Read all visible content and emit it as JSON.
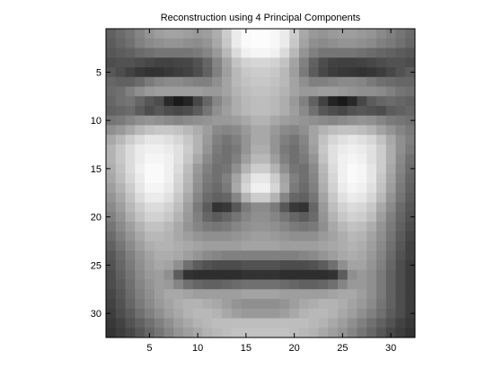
{
  "chart_data": {
    "type": "heatmap",
    "title": "Reconstruction using 4 Principal Components",
    "xlabel": "",
    "ylabel": "",
    "colormap": "gray",
    "axis_equal": true,
    "grid": false,
    "colorbar": false,
    "xlim": [
      0.5,
      32.5
    ],
    "ylim": [
      0.5,
      32.5
    ],
    "y_direction": "reverse",
    "xticks": [
      5,
      10,
      15,
      20,
      25,
      30
    ],
    "yticks": [
      5,
      10,
      15,
      20,
      25,
      30
    ],
    "grid_rows": 32,
    "grid_cols": 32,
    "value_range": [
      0,
      1
    ],
    "intensities": [
      [
        0.38,
        0.42,
        0.46,
        0.52,
        0.58,
        0.62,
        0.64,
        0.64,
        0.62,
        0.6,
        0.62,
        0.68,
        0.8,
        0.92,
        0.98,
        0.99,
        0.99,
        0.97,
        0.92,
        0.8,
        0.66,
        0.6,
        0.58,
        0.6,
        0.62,
        0.62,
        0.6,
        0.58,
        0.54,
        0.5,
        0.46,
        0.42
      ],
      [
        0.36,
        0.4,
        0.44,
        0.5,
        0.54,
        0.56,
        0.58,
        0.58,
        0.56,
        0.55,
        0.58,
        0.66,
        0.78,
        0.92,
        0.98,
        0.99,
        0.99,
        0.97,
        0.92,
        0.78,
        0.64,
        0.56,
        0.54,
        0.56,
        0.58,
        0.58,
        0.56,
        0.54,
        0.5,
        0.48,
        0.44,
        0.4
      ],
      [
        0.34,
        0.36,
        0.38,
        0.42,
        0.44,
        0.46,
        0.46,
        0.46,
        0.46,
        0.48,
        0.52,
        0.6,
        0.72,
        0.86,
        0.94,
        0.96,
        0.96,
        0.94,
        0.86,
        0.72,
        0.58,
        0.5,
        0.46,
        0.46,
        0.46,
        0.46,
        0.44,
        0.42,
        0.4,
        0.38,
        0.36,
        0.34
      ],
      [
        0.3,
        0.32,
        0.32,
        0.3,
        0.28,
        0.26,
        0.26,
        0.27,
        0.28,
        0.32,
        0.4,
        0.52,
        0.64,
        0.76,
        0.82,
        0.84,
        0.84,
        0.82,
        0.76,
        0.64,
        0.5,
        0.38,
        0.3,
        0.26,
        0.25,
        0.25,
        0.26,
        0.28,
        0.3,
        0.32,
        0.32,
        0.3
      ],
      [
        0.34,
        0.3,
        0.26,
        0.22,
        0.2,
        0.2,
        0.22,
        0.24,
        0.26,
        0.3,
        0.38,
        0.5,
        0.62,
        0.72,
        0.78,
        0.8,
        0.8,
        0.78,
        0.72,
        0.62,
        0.48,
        0.36,
        0.28,
        0.24,
        0.22,
        0.21,
        0.2,
        0.21,
        0.24,
        0.28,
        0.32,
        0.36
      ],
      [
        0.4,
        0.38,
        0.38,
        0.42,
        0.48,
        0.52,
        0.54,
        0.54,
        0.52,
        0.5,
        0.5,
        0.56,
        0.64,
        0.72,
        0.76,
        0.78,
        0.78,
        0.76,
        0.72,
        0.64,
        0.56,
        0.5,
        0.5,
        0.52,
        0.54,
        0.54,
        0.52,
        0.48,
        0.44,
        0.42,
        0.4,
        0.4
      ],
      [
        0.42,
        0.44,
        0.5,
        0.56,
        0.6,
        0.62,
        0.62,
        0.62,
        0.62,
        0.62,
        0.6,
        0.6,
        0.64,
        0.7,
        0.74,
        0.76,
        0.76,
        0.74,
        0.7,
        0.64,
        0.6,
        0.6,
        0.62,
        0.62,
        0.6,
        0.58,
        0.56,
        0.56,
        0.54,
        0.5,
        0.46,
        0.44
      ],
      [
        0.4,
        0.44,
        0.46,
        0.4,
        0.34,
        0.3,
        0.16,
        0.1,
        0.14,
        0.28,
        0.4,
        0.52,
        0.6,
        0.68,
        0.72,
        0.74,
        0.74,
        0.72,
        0.68,
        0.6,
        0.5,
        0.38,
        0.26,
        0.14,
        0.1,
        0.16,
        0.28,
        0.36,
        0.4,
        0.42,
        0.4,
        0.38
      ],
      [
        0.38,
        0.4,
        0.42,
        0.36,
        0.3,
        0.34,
        0.3,
        0.28,
        0.3,
        0.36,
        0.46,
        0.56,
        0.62,
        0.68,
        0.72,
        0.74,
        0.74,
        0.72,
        0.68,
        0.62,
        0.54,
        0.44,
        0.34,
        0.3,
        0.28,
        0.32,
        0.34,
        0.32,
        0.3,
        0.36,
        0.38,
        0.4
      ],
      [
        0.46,
        0.48,
        0.52,
        0.56,
        0.58,
        0.56,
        0.54,
        0.52,
        0.54,
        0.56,
        0.58,
        0.6,
        0.6,
        0.62,
        0.66,
        0.7,
        0.7,
        0.66,
        0.62,
        0.6,
        0.58,
        0.56,
        0.54,
        0.52,
        0.54,
        0.56,
        0.58,
        0.56,
        0.52,
        0.48,
        0.46,
        0.44
      ],
      [
        0.56,
        0.6,
        0.66,
        0.72,
        0.76,
        0.78,
        0.78,
        0.76,
        0.72,
        0.68,
        0.62,
        0.54,
        0.52,
        0.54,
        0.6,
        0.66,
        0.66,
        0.6,
        0.54,
        0.52,
        0.56,
        0.64,
        0.7,
        0.74,
        0.76,
        0.76,
        0.74,
        0.7,
        0.64,
        0.58,
        0.52,
        0.48
      ],
      [
        0.66,
        0.72,
        0.8,
        0.86,
        0.9,
        0.9,
        0.88,
        0.84,
        0.78,
        0.7,
        0.6,
        0.5,
        0.46,
        0.5,
        0.58,
        0.66,
        0.66,
        0.58,
        0.5,
        0.46,
        0.52,
        0.64,
        0.76,
        0.84,
        0.88,
        0.9,
        0.88,
        0.84,
        0.76,
        0.66,
        0.56,
        0.5
      ],
      [
        0.7,
        0.78,
        0.86,
        0.92,
        0.94,
        0.94,
        0.92,
        0.88,
        0.8,
        0.7,
        0.58,
        0.48,
        0.44,
        0.48,
        0.58,
        0.68,
        0.68,
        0.58,
        0.48,
        0.44,
        0.5,
        0.62,
        0.78,
        0.88,
        0.92,
        0.94,
        0.92,
        0.88,
        0.8,
        0.68,
        0.56,
        0.48
      ],
      [
        0.7,
        0.78,
        0.86,
        0.92,
        0.96,
        0.96,
        0.94,
        0.88,
        0.78,
        0.66,
        0.54,
        0.46,
        0.44,
        0.5,
        0.62,
        0.72,
        0.72,
        0.62,
        0.5,
        0.44,
        0.48,
        0.58,
        0.76,
        0.88,
        0.94,
        0.96,
        0.94,
        0.88,
        0.8,
        0.68,
        0.54,
        0.44
      ],
      [
        0.68,
        0.76,
        0.86,
        0.94,
        0.98,
        0.98,
        0.94,
        0.86,
        0.74,
        0.6,
        0.5,
        0.44,
        0.46,
        0.56,
        0.7,
        0.8,
        0.8,
        0.7,
        0.56,
        0.46,
        0.44,
        0.54,
        0.72,
        0.86,
        0.94,
        0.98,
        0.96,
        0.9,
        0.8,
        0.66,
        0.52,
        0.42
      ],
      [
        0.66,
        0.74,
        0.84,
        0.92,
        0.98,
        0.98,
        0.94,
        0.84,
        0.72,
        0.58,
        0.48,
        0.44,
        0.5,
        0.64,
        0.8,
        0.9,
        0.9,
        0.8,
        0.64,
        0.5,
        0.44,
        0.52,
        0.7,
        0.84,
        0.94,
        0.98,
        0.96,
        0.9,
        0.78,
        0.64,
        0.5,
        0.4
      ],
      [
        0.62,
        0.7,
        0.8,
        0.9,
        0.96,
        0.96,
        0.92,
        0.82,
        0.7,
        0.56,
        0.46,
        0.42,
        0.48,
        0.66,
        0.84,
        0.94,
        0.94,
        0.84,
        0.66,
        0.48,
        0.42,
        0.5,
        0.68,
        0.82,
        0.92,
        0.96,
        0.94,
        0.88,
        0.76,
        0.62,
        0.48,
        0.38
      ],
      [
        0.58,
        0.66,
        0.76,
        0.86,
        0.92,
        0.92,
        0.88,
        0.78,
        0.66,
        0.52,
        0.42,
        0.38,
        0.4,
        0.52,
        0.7,
        0.8,
        0.8,
        0.7,
        0.52,
        0.4,
        0.38,
        0.46,
        0.64,
        0.78,
        0.88,
        0.92,
        0.9,
        0.84,
        0.72,
        0.58,
        0.46,
        0.36
      ],
      [
        0.54,
        0.62,
        0.72,
        0.8,
        0.86,
        0.86,
        0.82,
        0.74,
        0.62,
        0.48,
        0.36,
        0.2,
        0.22,
        0.34,
        0.48,
        0.54,
        0.54,
        0.48,
        0.34,
        0.22,
        0.2,
        0.4,
        0.6,
        0.74,
        0.82,
        0.86,
        0.84,
        0.78,
        0.66,
        0.54,
        0.42,
        0.34
      ],
      [
        0.5,
        0.58,
        0.68,
        0.76,
        0.82,
        0.82,
        0.78,
        0.7,
        0.6,
        0.5,
        0.4,
        0.36,
        0.4,
        0.46,
        0.52,
        0.56,
        0.56,
        0.52,
        0.46,
        0.4,
        0.36,
        0.42,
        0.58,
        0.7,
        0.78,
        0.82,
        0.8,
        0.74,
        0.62,
        0.5,
        0.4,
        0.32
      ],
      [
        0.46,
        0.54,
        0.62,
        0.7,
        0.76,
        0.76,
        0.72,
        0.66,
        0.58,
        0.52,
        0.48,
        0.46,
        0.48,
        0.52,
        0.56,
        0.58,
        0.58,
        0.56,
        0.52,
        0.48,
        0.46,
        0.48,
        0.56,
        0.66,
        0.72,
        0.76,
        0.74,
        0.68,
        0.58,
        0.48,
        0.38,
        0.3
      ],
      [
        0.42,
        0.5,
        0.58,
        0.66,
        0.72,
        0.72,
        0.7,
        0.66,
        0.62,
        0.58,
        0.56,
        0.56,
        0.56,
        0.58,
        0.6,
        0.62,
        0.62,
        0.6,
        0.58,
        0.56,
        0.56,
        0.56,
        0.6,
        0.64,
        0.68,
        0.72,
        0.7,
        0.64,
        0.56,
        0.46,
        0.36,
        0.28
      ],
      [
        0.38,
        0.46,
        0.54,
        0.62,
        0.68,
        0.7,
        0.7,
        0.68,
        0.66,
        0.64,
        0.62,
        0.62,
        0.62,
        0.62,
        0.64,
        0.64,
        0.64,
        0.64,
        0.62,
        0.62,
        0.62,
        0.62,
        0.64,
        0.66,
        0.68,
        0.7,
        0.68,
        0.62,
        0.54,
        0.44,
        0.34,
        0.26
      ],
      [
        0.34,
        0.42,
        0.5,
        0.58,
        0.64,
        0.68,
        0.68,
        0.66,
        0.62,
        0.58,
        0.54,
        0.52,
        0.5,
        0.5,
        0.5,
        0.5,
        0.5,
        0.5,
        0.5,
        0.5,
        0.52,
        0.54,
        0.58,
        0.62,
        0.66,
        0.68,
        0.66,
        0.6,
        0.52,
        0.42,
        0.32,
        0.26
      ],
      [
        0.32,
        0.4,
        0.48,
        0.56,
        0.62,
        0.66,
        0.64,
        0.56,
        0.44,
        0.36,
        0.32,
        0.3,
        0.3,
        0.3,
        0.32,
        0.32,
        0.32,
        0.32,
        0.3,
        0.3,
        0.3,
        0.32,
        0.36,
        0.44,
        0.56,
        0.64,
        0.64,
        0.58,
        0.5,
        0.4,
        0.3,
        0.24
      ],
      [
        0.3,
        0.38,
        0.46,
        0.54,
        0.6,
        0.62,
        0.56,
        0.36,
        0.2,
        0.18,
        0.18,
        0.18,
        0.18,
        0.18,
        0.2,
        0.2,
        0.2,
        0.2,
        0.18,
        0.18,
        0.18,
        0.18,
        0.18,
        0.2,
        0.36,
        0.56,
        0.6,
        0.56,
        0.48,
        0.38,
        0.3,
        0.24
      ],
      [
        0.3,
        0.36,
        0.44,
        0.52,
        0.58,
        0.62,
        0.6,
        0.52,
        0.44,
        0.4,
        0.38,
        0.38,
        0.4,
        0.42,
        0.44,
        0.44,
        0.44,
        0.44,
        0.42,
        0.4,
        0.38,
        0.38,
        0.4,
        0.44,
        0.52,
        0.6,
        0.6,
        0.56,
        0.48,
        0.38,
        0.3,
        0.24
      ],
      [
        0.28,
        0.34,
        0.42,
        0.5,
        0.56,
        0.62,
        0.66,
        0.66,
        0.64,
        0.62,
        0.62,
        0.62,
        0.62,
        0.62,
        0.64,
        0.64,
        0.64,
        0.64,
        0.62,
        0.62,
        0.62,
        0.62,
        0.62,
        0.64,
        0.66,
        0.66,
        0.62,
        0.56,
        0.48,
        0.38,
        0.3,
        0.24
      ],
      [
        0.26,
        0.32,
        0.4,
        0.48,
        0.54,
        0.6,
        0.64,
        0.68,
        0.7,
        0.7,
        0.68,
        0.66,
        0.62,
        0.58,
        0.56,
        0.56,
        0.56,
        0.56,
        0.58,
        0.62,
        0.66,
        0.68,
        0.7,
        0.7,
        0.68,
        0.64,
        0.6,
        0.54,
        0.46,
        0.38,
        0.3,
        0.24
      ],
      [
        0.24,
        0.3,
        0.36,
        0.44,
        0.5,
        0.56,
        0.62,
        0.66,
        0.7,
        0.72,
        0.72,
        0.7,
        0.66,
        0.62,
        0.6,
        0.6,
        0.6,
        0.6,
        0.62,
        0.66,
        0.7,
        0.72,
        0.72,
        0.7,
        0.66,
        0.62,
        0.56,
        0.5,
        0.44,
        0.36,
        0.3,
        0.24
      ],
      [
        0.22,
        0.26,
        0.32,
        0.38,
        0.44,
        0.5,
        0.56,
        0.62,
        0.66,
        0.7,
        0.72,
        0.74,
        0.74,
        0.74,
        0.74,
        0.74,
        0.74,
        0.74,
        0.74,
        0.74,
        0.74,
        0.72,
        0.7,
        0.66,
        0.62,
        0.56,
        0.5,
        0.44,
        0.38,
        0.32,
        0.26,
        0.22
      ],
      [
        0.2,
        0.24,
        0.28,
        0.34,
        0.4,
        0.46,
        0.52,
        0.58,
        0.62,
        0.66,
        0.7,
        0.72,
        0.74,
        0.76,
        0.76,
        0.76,
        0.76,
        0.76,
        0.76,
        0.74,
        0.72,
        0.7,
        0.66,
        0.62,
        0.58,
        0.52,
        0.46,
        0.4,
        0.34,
        0.28,
        0.24,
        0.2
      ]
    ]
  }
}
